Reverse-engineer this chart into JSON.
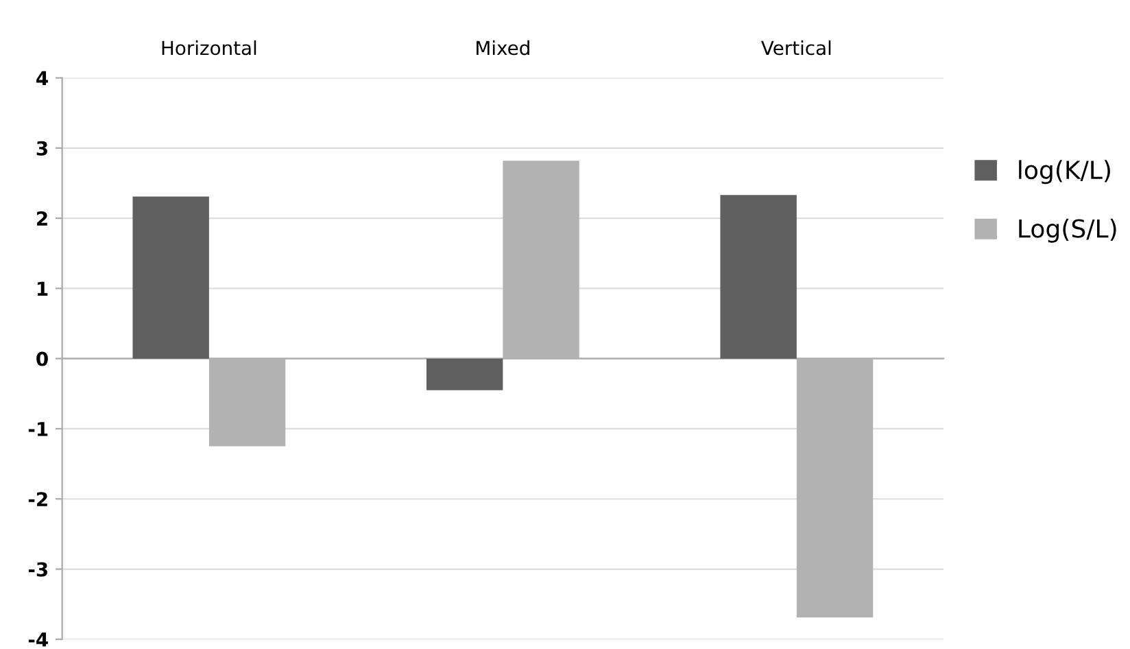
{
  "chart_data": {
    "type": "bar",
    "categories": [
      "Horizontal",
      "Mixed",
      "Vertical"
    ],
    "series": [
      {
        "name": "log(K/L)",
        "color": "#5f5f5f",
        "values": [
          2.31,
          -0.45,
          2.33
        ]
      },
      {
        "name": "Log(S/L)",
        "color": "#b2b2b2",
        "values": [
          -1.25,
          2.82,
          -3.69
        ]
      }
    ],
    "ylim": [
      -4,
      4
    ],
    "yticks": [
      -4,
      -3,
      -2,
      -1,
      0,
      1,
      2,
      3,
      4
    ],
    "grid": "y",
    "legend": "right"
  }
}
